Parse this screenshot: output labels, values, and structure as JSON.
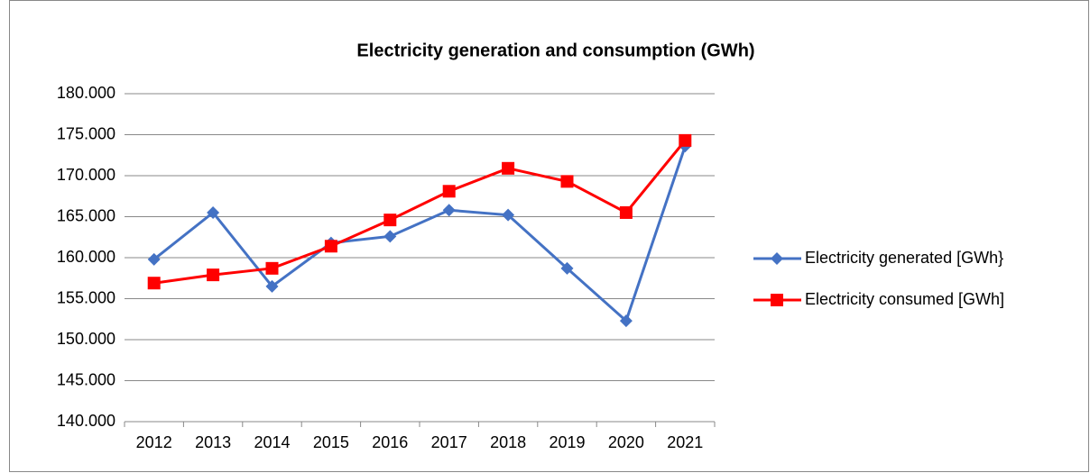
{
  "chart_data": {
    "type": "line",
    "title": "Electricity generation and consumption (GWh)",
    "categories": [
      "2012",
      "2013",
      "2014",
      "2015",
      "2016",
      "2017",
      "2018",
      "2019",
      "2020",
      "2021"
    ],
    "series": [
      {
        "name": "Electricity generated [GWh}",
        "color": "#4472c4",
        "marker": "diamond",
        "values": [
          159800,
          165500,
          156500,
          161800,
          162600,
          165800,
          165200,
          158700,
          152300,
          173600
        ]
      },
      {
        "name": "Electricity consumed [GWh]",
        "color": "#ff0000",
        "marker": "square",
        "values": [
          156900,
          157900,
          158700,
          161400,
          164600,
          168100,
          170900,
          169300,
          165500,
          174300
        ]
      }
    ],
    "ylim": [
      140000,
      180000
    ],
    "yticks": [
      {
        "value": 140000,
        "label": "140.000"
      },
      {
        "value": 145000,
        "label": "145.000"
      },
      {
        "value": 150000,
        "label": "150.000"
      },
      {
        "value": 155000,
        "label": "155.000"
      },
      {
        "value": 160000,
        "label": "160.000"
      },
      {
        "value": 165000,
        "label": "165.000"
      },
      {
        "value": 170000,
        "label": "170.000"
      },
      {
        "value": 175000,
        "label": "175.000"
      },
      {
        "value": 180000,
        "label": "180.000"
      }
    ],
    "grid": true,
    "legend": "right"
  }
}
